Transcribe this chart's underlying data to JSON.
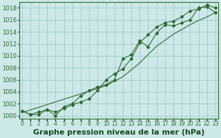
{
  "title": "Graphe pression niveau de la mer (hPa)",
  "hours": [
    0,
    1,
    2,
    3,
    4,
    5,
    6,
    7,
    8,
    9,
    10,
    11,
    12,
    13,
    14,
    15,
    16,
    17,
    18,
    19,
    20,
    21,
    22,
    23
  ],
  "line1": [
    1000.8,
    1000.2,
    1000.2,
    1001.0,
    1000.0,
    1001.5,
    1002.0,
    1003.3,
    1004.2,
    1004.8,
    1005.2,
    1006.0,
    1009.5,
    1010.2,
    1012.5,
    1011.5,
    1013.8,
    1015.2,
    1015.0,
    1015.5,
    1016.0,
    1018.0,
    1018.2,
    1017.2
  ],
  "line2": [
    1000.8,
    1000.2,
    1000.6,
    1001.0,
    1000.6,
    1001.2,
    1001.8,
    1002.3,
    1002.8,
    1004.2,
    1006.0,
    1007.0,
    1007.8,
    1009.5,
    1012.2,
    1013.5,
    1014.8,
    1015.5,
    1015.8,
    1016.5,
    1017.5,
    1017.8,
    1018.5,
    1018.0
  ],
  "trend": [
    1000.5,
    1000.95,
    1001.4,
    1001.85,
    1002.3,
    1002.75,
    1003.2,
    1003.65,
    1004.1,
    1004.55,
    1005.0,
    1005.75,
    1006.5,
    1007.65,
    1008.8,
    1010.2,
    1011.6,
    1012.6,
    1013.6,
    1014.4,
    1015.2,
    1015.9,
    1016.5,
    1017.2
  ],
  "ylim": [
    999.5,
    1019.0
  ],
  "yticks": [
    1000,
    1002,
    1004,
    1006,
    1008,
    1010,
    1012,
    1014,
    1016,
    1018
  ],
  "line_color": "#2d6a2d",
  "bg_color": "#cce8e8",
  "grid_color": "#9dc4c4",
  "title_color": "#1a4a1a",
  "title_fontsize": 8.0,
  "tick_fontsize": 6.0
}
